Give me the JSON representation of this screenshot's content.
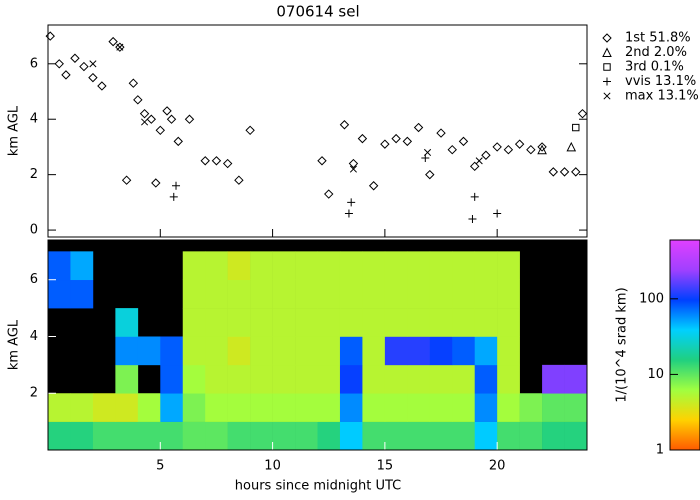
{
  "chart_data": [
    {
      "type": "scatter",
      "title": "070614 sel",
      "ylabel": "km AGL",
      "xlim": [
        0,
        24
      ],
      "ylim": [
        -0.25,
        7.4
      ],
      "yticks": [
        0,
        2,
        4,
        6
      ],
      "series": [
        {
          "name": "1st 51.8%",
          "marker": "diamond",
          "color": "#000000",
          "x": [
            0.1,
            0.5,
            0.8,
            1.2,
            1.6,
            2.0,
            2.4,
            2.9,
            3.2,
            3.5,
            3.8,
            4.0,
            4.3,
            4.6,
            4.8,
            5.0,
            5.3,
            5.5,
            5.8,
            6.3,
            7.0,
            7.5,
            8.0,
            8.5,
            9.0,
            12.2,
            12.5,
            13.2,
            13.6,
            14.0,
            14.5,
            15.0,
            15.5,
            16.0,
            16.5,
            17.0,
            17.5,
            18.0,
            18.5,
            19.0,
            19.5,
            20.0,
            20.5,
            21.0,
            21.5,
            22.0,
            22.5,
            23.0,
            23.5,
            23.8
          ],
          "y": [
            7.0,
            6.0,
            5.6,
            6.2,
            5.9,
            5.5,
            5.2,
            6.8,
            6.6,
            1.8,
            5.3,
            4.7,
            4.2,
            4.0,
            1.7,
            3.6,
            4.3,
            4.0,
            3.2,
            4.0,
            2.5,
            2.5,
            2.4,
            1.8,
            3.6,
            2.5,
            1.3,
            3.8,
            2.4,
            3.3,
            1.6,
            3.1,
            3.3,
            3.2,
            3.7,
            2.0,
            3.5,
            2.9,
            3.2,
            2.3,
            2.7,
            3.0,
            2.9,
            3.1,
            2.9,
            3.0,
            2.1,
            2.1,
            2.1,
            4.2
          ]
        },
        {
          "name": "2nd  2.0%",
          "marker": "triangle",
          "color": "#000000",
          "x": [
            22.0,
            23.3
          ],
          "y": [
            2.9,
            3.0
          ]
        },
        {
          "name": "3rd  0.1%",
          "marker": "square",
          "color": "#000000",
          "x": [
            23.5
          ],
          "y": [
            3.7
          ]
        },
        {
          "name": "vvis 13.1%",
          "marker": "plus",
          "color": "#000000",
          "x": [
            5.6,
            5.7,
            13.4,
            13.5,
            18.9,
            19.0,
            20.0,
            16.8
          ],
          "y": [
            1.2,
            1.6,
            0.6,
            1.0,
            0.4,
            1.2,
            0.6,
            2.6
          ]
        },
        {
          "name": "max  13.1%",
          "marker": "cross",
          "color": "#000000",
          "x": [
            2.0,
            3.2,
            4.3,
            13.6,
            16.9,
            19.2
          ],
          "y": [
            6.0,
            6.6,
            3.9,
            2.2,
            2.8,
            2.5
          ]
        }
      ]
    },
    {
      "type": "heatmap",
      "ylabel": "km AGL",
      "xlabel": "hours since midnight UTC",
      "xlim": [
        0,
        24
      ],
      "ylim": [
        0,
        7.4
      ],
      "xticks": [
        5,
        10,
        15,
        20
      ],
      "yticks": [
        2,
        4,
        6
      ],
      "xbins": [
        0,
        1,
        2,
        3,
        4,
        5,
        6,
        7,
        8,
        9,
        10,
        11,
        12,
        13,
        14,
        15,
        16,
        17,
        18,
        19,
        20,
        21,
        22,
        23,
        24
      ],
      "ybins": [
        0,
        1,
        2,
        3,
        4,
        5,
        6,
        7
      ],
      "values": [
        [
          15,
          15,
          12,
          12,
          12,
          12,
          10,
          10,
          12,
          12,
          12,
          12,
          15,
          40,
          12,
          12,
          12,
          12,
          12,
          40,
          12,
          12,
          15,
          15
        ],
        [
          5,
          5,
          4,
          4,
          6,
          50,
          8,
          6,
          6,
          6,
          6,
          6,
          6,
          60,
          6,
          6,
          6,
          6,
          6,
          60,
          6,
          8,
          10,
          10
        ],
        [
          null,
          null,
          null,
          8,
          null,
          80,
          6,
          5,
          5,
          5,
          5,
          5,
          5,
          100,
          5,
          5,
          5,
          5,
          5,
          80,
          5,
          null,
          200,
          200
        ],
        [
          null,
          null,
          null,
          60,
          60,
          80,
          5,
          5,
          4,
          5,
          5,
          5,
          5,
          80,
          5,
          120,
          120,
          100,
          80,
          50,
          5,
          null,
          null,
          null
        ],
        [
          null,
          null,
          null,
          30,
          null,
          null,
          5,
          5,
          5,
          5,
          5,
          5,
          5,
          5,
          5,
          5,
          5,
          5,
          5,
          5,
          5,
          null,
          null,
          null
        ],
        [
          80,
          80,
          null,
          null,
          null,
          null,
          5,
          5,
          5,
          5,
          5,
          5,
          5,
          5,
          5,
          5,
          5,
          5,
          5,
          5,
          5,
          null,
          null,
          null
        ],
        [
          80,
          50,
          null,
          null,
          null,
          null,
          5,
          5,
          4,
          5,
          5,
          5,
          5,
          5,
          5,
          5,
          5,
          5,
          5,
          5,
          5,
          null,
          null,
          null
        ]
      ],
      "colorbar": {
        "label": "1/(10^4 srad km)",
        "lim": [
          1,
          600
        ],
        "ticks": [
          1,
          10,
          100
        ],
        "log": true,
        "colormap": [
          "#ff5a00",
          "#ffd200",
          "#a0ff40",
          "#20d080",
          "#00d0ff",
          "#0040ff",
          "#a040ff",
          "#e040ff"
        ]
      },
      "background": "#000000"
    }
  ]
}
